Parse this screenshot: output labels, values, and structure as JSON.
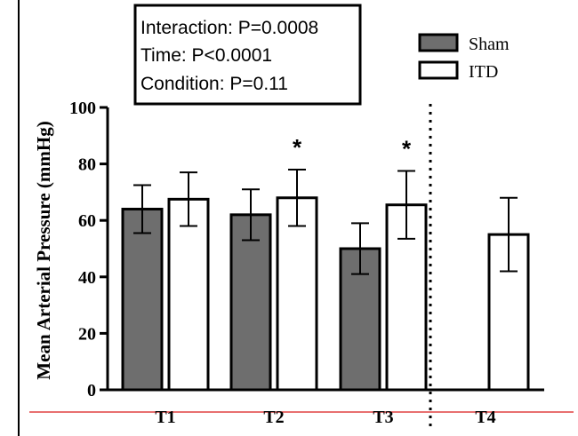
{
  "chart_data": {
    "type": "bar",
    "categories": [
      "T1",
      "T2",
      "T3",
      "T4"
    ],
    "ylabel": "Mean Arterial Pressure (mmHg)",
    "xlabel": "",
    "ylim": [
      0,
      100
    ],
    "yticks": [
      "0",
      "20",
      "40",
      "60",
      "80",
      "100"
    ],
    "series": [
      {
        "name": "Sham",
        "color": "#6e6e6e",
        "values": [
          64,
          62,
          50,
          null
        ],
        "errors": [
          8.5,
          9,
          9,
          null
        ]
      },
      {
        "name": "ITD",
        "color": "#ffffff",
        "values": [
          67.5,
          68,
          65.5,
          55
        ],
        "errors": [
          9.5,
          10,
          12,
          13
        ]
      }
    ],
    "significance": [
      "",
      "*",
      "*",
      ""
    ],
    "annotations": [
      "Interaction: P=0.0008",
      "Time: P<0.0001",
      "Condition: P=0.11"
    ],
    "legend_position": "top-right",
    "divider_after_category": "T3",
    "grid": false
  }
}
